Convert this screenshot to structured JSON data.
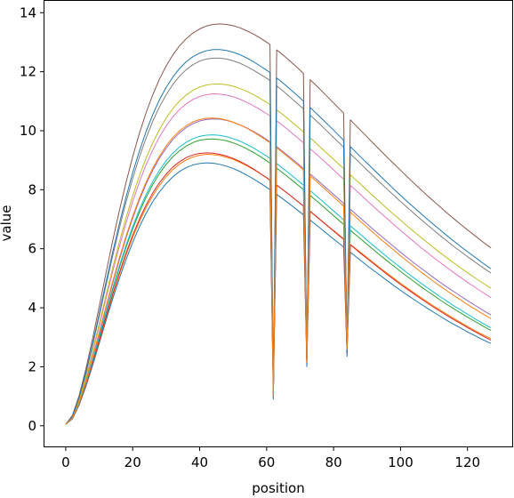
{
  "chart_data": {
    "type": "line",
    "title": "",
    "xlabel": "position",
    "ylabel": "value",
    "xlim": [
      -6.35,
      133.35
    ],
    "ylim": [
      -0.7,
      14.4
    ],
    "x_ticks": [
      0,
      20,
      40,
      60,
      80,
      100,
      120
    ],
    "y_ticks": [
      0,
      2,
      4,
      6,
      8,
      10,
      12,
      14
    ],
    "grid": false,
    "legend": "none",
    "x": [
      0,
      2,
      4,
      6,
      8,
      10,
      12,
      14,
      16,
      18,
      20,
      22,
      24,
      26,
      28,
      30,
      32,
      34,
      36,
      38,
      40,
      42,
      44,
      46,
      48,
      50,
      52,
      54,
      56,
      58,
      60,
      61,
      62,
      63,
      64,
      66,
      68,
      70,
      71,
      72,
      73,
      74,
      76,
      78,
      80,
      82,
      83,
      84,
      85,
      86,
      88,
      90,
      92,
      94,
      96,
      98,
      100,
      102,
      104,
      106,
      108,
      110,
      112,
      114,
      116,
      118,
      120,
      122,
      124,
      126,
      127
    ],
    "series": [
      {
        "color": "#1f77b4",
        "values": [
          0.05,
          0.23,
          0.7,
          1.32,
          2.03,
          2.79,
          3.55,
          4.29,
          4.99,
          5.63,
          6.22,
          6.74,
          7.2,
          7.6,
          7.93,
          8.21,
          8.44,
          8.62,
          8.75,
          8.84,
          8.89,
          8.91,
          8.9,
          8.86,
          8.8,
          8.72,
          8.62,
          8.5,
          8.37,
          8.23,
          8.08,
          8.0,
          1.05,
          7.84,
          7.76,
          7.59,
          7.42,
          7.24,
          7.15,
          2.13,
          6.97,
          6.88,
          6.7,
          6.51,
          6.33,
          6.15,
          6.06,
          2.49,
          5.88,
          5.79,
          5.61,
          5.43,
          5.26,
          5.09,
          4.92,
          4.75,
          4.59,
          4.43,
          4.28,
          4.13,
          3.98,
          3.84,
          3.7,
          3.56,
          3.43,
          3.31,
          3.18,
          3.07,
          2.95,
          2.84,
          2.79
        ]
      },
      {
        "color": "#ff7f0e",
        "values": [
          0.05,
          0.24,
          0.72,
          1.35,
          2.08,
          2.86,
          3.64,
          4.4,
          5.12,
          5.78,
          6.38,
          6.92,
          7.39,
          7.8,
          8.15,
          8.44,
          8.68,
          8.87,
          9.01,
          9.11,
          9.17,
          9.2,
          9.19,
          9.16,
          9.1,
          9.03,
          8.93,
          8.82,
          8.69,
          8.55,
          8.4,
          8.32,
          1.1,
          8.15,
          8.07,
          7.9,
          7.72,
          7.54,
          7.45,
          2.2,
          7.27,
          7.18,
          6.99,
          6.8,
          6.62,
          6.43,
          6.34,
          2.6,
          6.15,
          6.06,
          5.88,
          5.7,
          5.52,
          5.34,
          5.17,
          5.0,
          4.83,
          4.67,
          4.51,
          4.35,
          4.2,
          4.05,
          3.91,
          3.77,
          3.63,
          3.5,
          3.37,
          3.24,
          3.12,
          3.01,
          2.95
        ]
      },
      {
        "color": "#2ca02c",
        "values": [
          0.05,
          0.26,
          0.76,
          1.42,
          2.17,
          2.98,
          3.8,
          4.59,
          5.35,
          6.04,
          6.67,
          7.24,
          7.74,
          8.18,
          8.55,
          8.86,
          9.12,
          9.32,
          9.48,
          9.6,
          9.68,
          9.71,
          9.72,
          9.7,
          9.66,
          9.59,
          9.5,
          9.39,
          9.27,
          9.13,
          8.98,
          8.9,
          1.15,
          8.73,
          8.64,
          8.47,
          8.28,
          8.1,
          8.0,
          2.3,
          7.81,
          7.71,
          7.52,
          7.32,
          7.12,
          6.92,
          6.83,
          2.75,
          6.63,
          6.53,
          6.34,
          6.15,
          5.96,
          5.77,
          5.59,
          5.41,
          5.23,
          5.06,
          4.89,
          4.72,
          4.56,
          4.41,
          4.25,
          4.1,
          3.96,
          3.82,
          3.68,
          3.55,
          3.42,
          3.29,
          3.23
        ]
      },
      {
        "color": "#d62728",
        "values": [
          0.05,
          0.25,
          0.73,
          1.37,
          2.1,
          2.89,
          3.68,
          4.45,
          5.18,
          5.85,
          6.46,
          7.0,
          7.48,
          7.89,
          8.24,
          8.53,
          8.77,
          8.95,
          9.09,
          9.18,
          9.23,
          9.25,
          9.24,
          9.2,
          9.14,
          9.06,
          8.96,
          8.84,
          8.71,
          8.56,
          8.41,
          8.33,
          0.95,
          8.16,
          8.07,
          7.9,
          7.72,
          7.54,
          7.45,
          2.05,
          7.27,
          7.17,
          6.98,
          6.79,
          6.6,
          6.41,
          6.32,
          2.45,
          6.13,
          6.04,
          5.85,
          5.67,
          5.49,
          5.31,
          5.13,
          4.96,
          4.79,
          4.63,
          4.47,
          4.31,
          4.16,
          4.01,
          3.87,
          3.73,
          3.59,
          3.46,
          3.33,
          3.2,
          3.08,
          2.96,
          2.9
        ]
      },
      {
        "color": "#9467bd",
        "values": [
          0.05,
          0.27,
          0.79,
          1.48,
          2.27,
          3.12,
          3.98,
          4.82,
          5.62,
          6.36,
          7.04,
          7.65,
          8.19,
          8.66,
          9.07,
          9.41,
          9.7,
          9.93,
          10.11,
          10.24,
          10.33,
          10.38,
          10.4,
          10.39,
          10.35,
          10.29,
          10.2,
          10.1,
          9.98,
          9.85,
          9.7,
          9.62,
          1.2,
          9.46,
          9.37,
          9.19,
          9.01,
          8.82,
          8.72,
          2.4,
          8.53,
          8.44,
          8.24,
          8.04,
          7.84,
          7.64,
          7.54,
          2.85,
          7.34,
          7.24,
          7.04,
          6.84,
          6.64,
          6.45,
          6.26,
          6.07,
          5.88,
          5.7,
          5.52,
          5.35,
          5.18,
          5.01,
          4.85,
          4.69,
          4.54,
          4.39,
          4.24,
          4.1,
          3.96,
          3.82,
          3.76
        ]
      },
      {
        "color": "#8c564b",
        "values": [
          0.05,
          0.35,
          1.02,
          1.92,
          2.94,
          4.04,
          5.16,
          6.25,
          7.28,
          8.24,
          9.12,
          9.91,
          10.61,
          11.22,
          11.75,
          12.2,
          12.57,
          12.88,
          13.12,
          13.31,
          13.45,
          13.55,
          13.6,
          13.62,
          13.6,
          13.56,
          13.49,
          13.39,
          13.28,
          13.15,
          13.0,
          12.92,
          1.0,
          12.74,
          12.65,
          12.46,
          12.26,
          12.05,
          11.94,
          2.1,
          11.73,
          11.62,
          11.4,
          11.17,
          10.94,
          10.71,
          10.6,
          2.5,
          10.37,
          10.25,
          10.02,
          9.79,
          9.56,
          9.33,
          9.1,
          8.88,
          8.66,
          8.44,
          8.22,
          8.01,
          7.8,
          7.6,
          7.4,
          7.2,
          7.01,
          6.82,
          6.64,
          6.46,
          6.28,
          6.11,
          6.03
        ]
      },
      {
        "color": "#e377c2",
        "values": [
          0.05,
          0.29,
          0.85,
          1.6,
          2.45,
          3.37,
          4.3,
          5.21,
          6.07,
          6.87,
          7.6,
          8.26,
          8.84,
          9.35,
          9.79,
          10.16,
          10.47,
          10.72,
          10.91,
          11.06,
          11.16,
          11.22,
          11.25,
          11.24,
          11.21,
          11.15,
          11.07,
          10.97,
          10.85,
          10.72,
          10.58,
          10.5,
          1.25,
          10.33,
          10.25,
          10.07,
          9.88,
          9.69,
          9.59,
          2.5,
          9.39,
          9.29,
          9.09,
          8.88,
          8.67,
          8.46,
          8.36,
          2.95,
          8.15,
          8.05,
          7.84,
          7.63,
          7.42,
          7.22,
          7.02,
          6.82,
          6.62,
          6.43,
          6.24,
          6.05,
          5.87,
          5.69,
          5.52,
          5.35,
          5.18,
          5.02,
          4.86,
          4.71,
          4.56,
          4.41,
          4.34
        ]
      },
      {
        "color": "#7f7f7f",
        "values": [
          0.05,
          0.32,
          0.94,
          1.76,
          2.7,
          3.71,
          4.74,
          5.74,
          6.69,
          7.57,
          8.38,
          9.11,
          9.75,
          10.32,
          10.81,
          11.22,
          11.57,
          11.85,
          12.07,
          12.24,
          12.36,
          12.43,
          12.46,
          12.46,
          12.43,
          12.37,
          12.29,
          12.18,
          12.06,
          11.92,
          11.78,
          11.7,
          1.3,
          11.52,
          11.43,
          11.24,
          11.04,
          10.84,
          10.74,
          2.55,
          10.53,
          10.42,
          10.21,
          9.99,
          9.77,
          9.55,
          9.44,
          3.0,
          9.22,
          9.11,
          8.89,
          8.67,
          8.45,
          8.23,
          8.02,
          7.81,
          7.6,
          7.4,
          7.2,
          7.0,
          6.81,
          6.62,
          6.43,
          6.25,
          6.07,
          5.9,
          5.73,
          5.57,
          5.41,
          5.25,
          5.18
        ]
      },
      {
        "color": "#bcbd22",
        "values": [
          0.05,
          0.3,
          0.87,
          1.64,
          2.51,
          3.45,
          4.41,
          5.34,
          6.22,
          7.04,
          7.79,
          8.47,
          9.07,
          9.59,
          10.04,
          10.43,
          10.75,
          11.01,
          11.21,
          11.37,
          11.48,
          11.55,
          11.58,
          11.58,
          11.56,
          11.51,
          11.43,
          11.34,
          11.23,
          11.1,
          10.96,
          10.88,
          1.15,
          10.71,
          10.62,
          10.44,
          10.25,
          10.06,
          9.96,
          2.35,
          9.76,
          9.66,
          9.45,
          9.24,
          9.03,
          8.82,
          8.72,
          2.8,
          8.51,
          8.4,
          8.19,
          7.98,
          7.77,
          7.57,
          7.36,
          7.16,
          6.97,
          6.77,
          6.58,
          6.39,
          6.21,
          6.03,
          5.85,
          5.68,
          5.51,
          5.35,
          5.19,
          5.03,
          4.88,
          4.73,
          4.66
        ]
      },
      {
        "color": "#17becf",
        "values": [
          0.05,
          0.26,
          0.76,
          1.43,
          2.19,
          3.01,
          3.84,
          4.65,
          5.41,
          6.11,
          6.75,
          7.33,
          7.84,
          8.28,
          8.66,
          8.98,
          9.24,
          9.45,
          9.61,
          9.73,
          9.81,
          9.85,
          9.86,
          9.84,
          9.8,
          9.73,
          9.65,
          9.54,
          9.42,
          9.28,
          9.14,
          9.06,
          1.1,
          8.89,
          8.8,
          8.62,
          8.44,
          8.25,
          8.16,
          2.25,
          7.97,
          7.87,
          7.68,
          7.48,
          7.28,
          7.08,
          6.98,
          2.7,
          6.78,
          6.68,
          6.49,
          6.29,
          6.1,
          5.91,
          5.72,
          5.54,
          5.36,
          5.18,
          5.01,
          4.84,
          4.68,
          4.52,
          4.36,
          4.21,
          4.06,
          3.92,
          3.78,
          3.64,
          3.51,
          3.38,
          3.32
        ]
      },
      {
        "color": "#1f77b4",
        "values": [
          0.05,
          0.33,
          0.96,
          1.8,
          2.76,
          3.8,
          4.85,
          5.87,
          6.84,
          7.74,
          8.57,
          9.31,
          9.97,
          10.55,
          11.05,
          11.47,
          11.82,
          12.11,
          12.34,
          12.51,
          12.63,
          12.71,
          12.75,
          12.75,
          12.72,
          12.66,
          12.58,
          12.47,
          12.34,
          12.2,
          12.05,
          11.97,
          0.9,
          11.79,
          11.7,
          11.51,
          11.31,
          11.11,
          11.0,
          2.0,
          10.79,
          10.68,
          10.46,
          10.24,
          10.02,
          9.79,
          9.68,
          2.35,
          9.46,
          9.35,
          9.12,
          8.9,
          8.68,
          8.46,
          8.24,
          8.02,
          7.81,
          7.6,
          7.4,
          7.2,
          7.0,
          6.81,
          6.62,
          6.43,
          6.25,
          6.07,
          5.9,
          5.73,
          5.56,
          5.4,
          5.32
        ]
      },
      {
        "color": "#ff7f0e",
        "values": [
          0.05,
          0.27,
          0.8,
          1.5,
          2.3,
          3.16,
          4.03,
          4.88,
          5.68,
          6.42,
          7.1,
          7.71,
          8.26,
          8.73,
          9.14,
          9.49,
          9.77,
          10.0,
          10.17,
          10.3,
          10.38,
          10.42,
          10.43,
          10.41,
          10.36,
          10.29,
          10.2,
          10.09,
          9.96,
          9.82,
          9.67,
          9.59,
          1.0,
          9.42,
          9.33,
          9.15,
          8.96,
          8.77,
          8.67,
          2.15,
          8.47,
          8.37,
          8.17,
          7.96,
          7.76,
          7.55,
          7.45,
          2.6,
          7.24,
          7.14,
          6.93,
          6.73,
          6.53,
          6.33,
          6.14,
          5.95,
          5.76,
          5.58,
          5.4,
          5.22,
          5.05,
          4.88,
          4.72,
          4.56,
          4.41,
          4.26,
          4.11,
          3.97,
          3.83,
          3.7,
          3.63
        ]
      }
    ]
  }
}
